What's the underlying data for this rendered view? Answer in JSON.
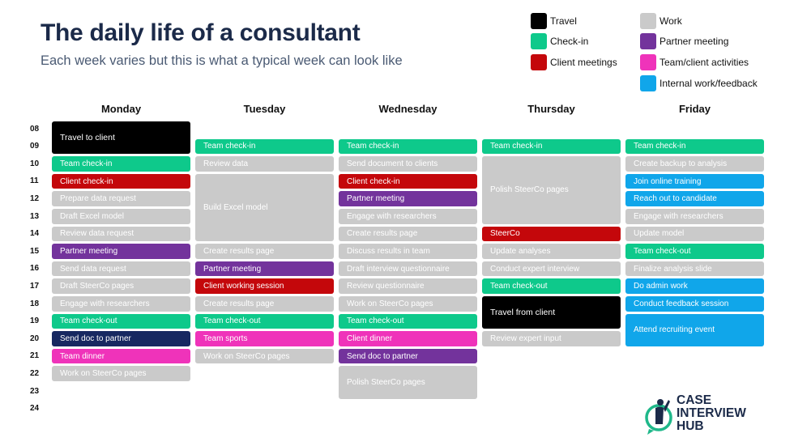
{
  "header": {
    "title": "The daily life of a consultant",
    "subtitle": "Each week varies but this is what a typical week can look like"
  },
  "colors": {
    "travel": "#000000",
    "checkin": "#0ec98b",
    "client": "#c4070b",
    "work": "#cacaca",
    "partner": "#73339c",
    "team": "#ef33ba",
    "internal": "#10a6ea",
    "navy": "#172861"
  },
  "legend": [
    {
      "label": "Travel",
      "color": "travel"
    },
    {
      "label": "Check-in",
      "color": "checkin"
    },
    {
      "label": "Client meetings",
      "color": "client"
    },
    {
      "label": "Work",
      "color": "work"
    },
    {
      "label": "Partner meeting",
      "color": "partner"
    },
    {
      "label": "Team/client activities",
      "color": "team"
    },
    {
      "label": "Internal work/feedback",
      "color": "internal"
    }
  ],
  "hours": [
    "08",
    "09",
    "10",
    "11",
    "12",
    "13",
    "14",
    "15",
    "16",
    "17",
    "18",
    "19",
    "20",
    "21",
    "22",
    "23",
    "24"
  ],
  "days": [
    {
      "name": "Monday",
      "events": [
        {
          "label": "Travel to client",
          "start": 8,
          "end": 10,
          "color": "travel"
        },
        {
          "label": "Team check-in",
          "start": 10,
          "end": 11,
          "color": "checkin"
        },
        {
          "label": "Client check-in",
          "start": 11,
          "end": 12,
          "color": "client"
        },
        {
          "label": "Prepare data request",
          "start": 12,
          "end": 13,
          "color": "work"
        },
        {
          "label": "Draft Excel model",
          "start": 13,
          "end": 14,
          "color": "work"
        },
        {
          "label": "Review data request",
          "start": 14,
          "end": 15,
          "color": "work"
        },
        {
          "label": "Partner meeting",
          "start": 15,
          "end": 16,
          "color": "partner"
        },
        {
          "label": "Send data request",
          "start": 16,
          "end": 17,
          "color": "work"
        },
        {
          "label": "Draft SteerCo pages",
          "start": 17,
          "end": 18,
          "color": "work"
        },
        {
          "label": "Engage with researchers",
          "start": 18,
          "end": 19,
          "color": "work"
        },
        {
          "label": "Team check-out",
          "start": 19,
          "end": 20,
          "color": "checkin"
        },
        {
          "label": "Send doc to partner",
          "start": 20,
          "end": 21,
          "color": "navy"
        },
        {
          "label": "Team dinner",
          "start": 21,
          "end": 22,
          "color": "team"
        },
        {
          "label": "Work on SteerCo pages",
          "start": 22,
          "end": 23,
          "color": "work"
        }
      ]
    },
    {
      "name": "Tuesday",
      "events": [
        {
          "label": "Team check-in",
          "start": 9,
          "end": 10,
          "color": "checkin"
        },
        {
          "label": "Review data",
          "start": 10,
          "end": 11,
          "color": "work"
        },
        {
          "label": "Build Excel model",
          "start": 11,
          "end": 15,
          "color": "work"
        },
        {
          "label": "Create results page",
          "start": 15,
          "end": 16,
          "color": "work"
        },
        {
          "label": "Partner meeting",
          "start": 16,
          "end": 17,
          "color": "partner"
        },
        {
          "label": "Client working session",
          "start": 17,
          "end": 18,
          "color": "client"
        },
        {
          "label": "Create results page",
          "start": 18,
          "end": 19,
          "color": "work"
        },
        {
          "label": "Team check-out",
          "start": 19,
          "end": 20,
          "color": "checkin"
        },
        {
          "label": "Team sports",
          "start": 20,
          "end": 21,
          "color": "team"
        },
        {
          "label": "Work on SteerCo pages",
          "start": 21,
          "end": 22,
          "color": "work"
        }
      ]
    },
    {
      "name": "Wednesday",
      "events": [
        {
          "label": "Team check-in",
          "start": 9,
          "end": 10,
          "color": "checkin"
        },
        {
          "label": "Send document to clients",
          "start": 10,
          "end": 11,
          "color": "work"
        },
        {
          "label": "Client check-in",
          "start": 11,
          "end": 12,
          "color": "client"
        },
        {
          "label": "Partner meeting",
          "start": 12,
          "end": 13,
          "color": "partner"
        },
        {
          "label": "Engage with researchers",
          "start": 13,
          "end": 14,
          "color": "work"
        },
        {
          "label": "Create results page",
          "start": 14,
          "end": 15,
          "color": "work"
        },
        {
          "label": "Discuss results in team",
          "start": 15,
          "end": 16,
          "color": "work"
        },
        {
          "label": "Draft interview questionnaire",
          "start": 16,
          "end": 17,
          "color": "work"
        },
        {
          "label": "Review questionnaire",
          "start": 17,
          "end": 18,
          "color": "work"
        },
        {
          "label": "Work on SteerCo pages",
          "start": 18,
          "end": 19,
          "color": "work"
        },
        {
          "label": "Team check-out",
          "start": 19,
          "end": 20,
          "color": "checkin"
        },
        {
          "label": "Client dinner",
          "start": 20,
          "end": 21,
          "color": "team"
        },
        {
          "label": "Send doc to partner",
          "start": 21,
          "end": 22,
          "color": "partner"
        },
        {
          "label": "Polish SteerCo pages",
          "start": 22,
          "end": 24,
          "color": "work"
        }
      ]
    },
    {
      "name": "Thursday",
      "events": [
        {
          "label": "Team check-in",
          "start": 9,
          "end": 10,
          "color": "checkin"
        },
        {
          "label": "Polish SteerCo pages",
          "start": 10,
          "end": 14,
          "color": "work"
        },
        {
          "label": "SteerCo",
          "start": 14,
          "end": 15,
          "color": "client"
        },
        {
          "label": "Update analyses",
          "start": 15,
          "end": 16,
          "color": "work"
        },
        {
          "label": "Conduct expert interview",
          "start": 16,
          "end": 17,
          "color": "work"
        },
        {
          "label": "Team check-out",
          "start": 17,
          "end": 18,
          "color": "checkin"
        },
        {
          "label": "Travel from client",
          "start": 18,
          "end": 20,
          "color": "travel"
        },
        {
          "label": "Review expert input",
          "start": 20,
          "end": 21,
          "color": "work"
        }
      ]
    },
    {
      "name": "Friday",
      "events": [
        {
          "label": "Team check-in",
          "start": 9,
          "end": 10,
          "color": "checkin"
        },
        {
          "label": "Create backup to analysis",
          "start": 10,
          "end": 11,
          "color": "work"
        },
        {
          "label": "Join online training",
          "start": 11,
          "end": 12,
          "color": "internal"
        },
        {
          "label": "Reach out to candidate",
          "start": 12,
          "end": 13,
          "color": "internal"
        },
        {
          "label": "Engage with researchers",
          "start": 13,
          "end": 14,
          "color": "work"
        },
        {
          "label": "Update model",
          "start": 14,
          "end": 15,
          "color": "work"
        },
        {
          "label": "Team check-out",
          "start": 15,
          "end": 16,
          "color": "checkin"
        },
        {
          "label": "Finalize analysis slide",
          "start": 16,
          "end": 17,
          "color": "work"
        },
        {
          "label": "Do admin work",
          "start": 17,
          "end": 18,
          "color": "internal"
        },
        {
          "label": "Conduct feedback session",
          "start": 18,
          "end": 19,
          "color": "internal"
        },
        {
          "label": "Attend recruiting event",
          "start": 19,
          "end": 21,
          "color": "internal"
        }
      ]
    }
  ],
  "logo": {
    "line1": "CASE",
    "line2": "INTERVIEW",
    "line3": "HUB"
  }
}
